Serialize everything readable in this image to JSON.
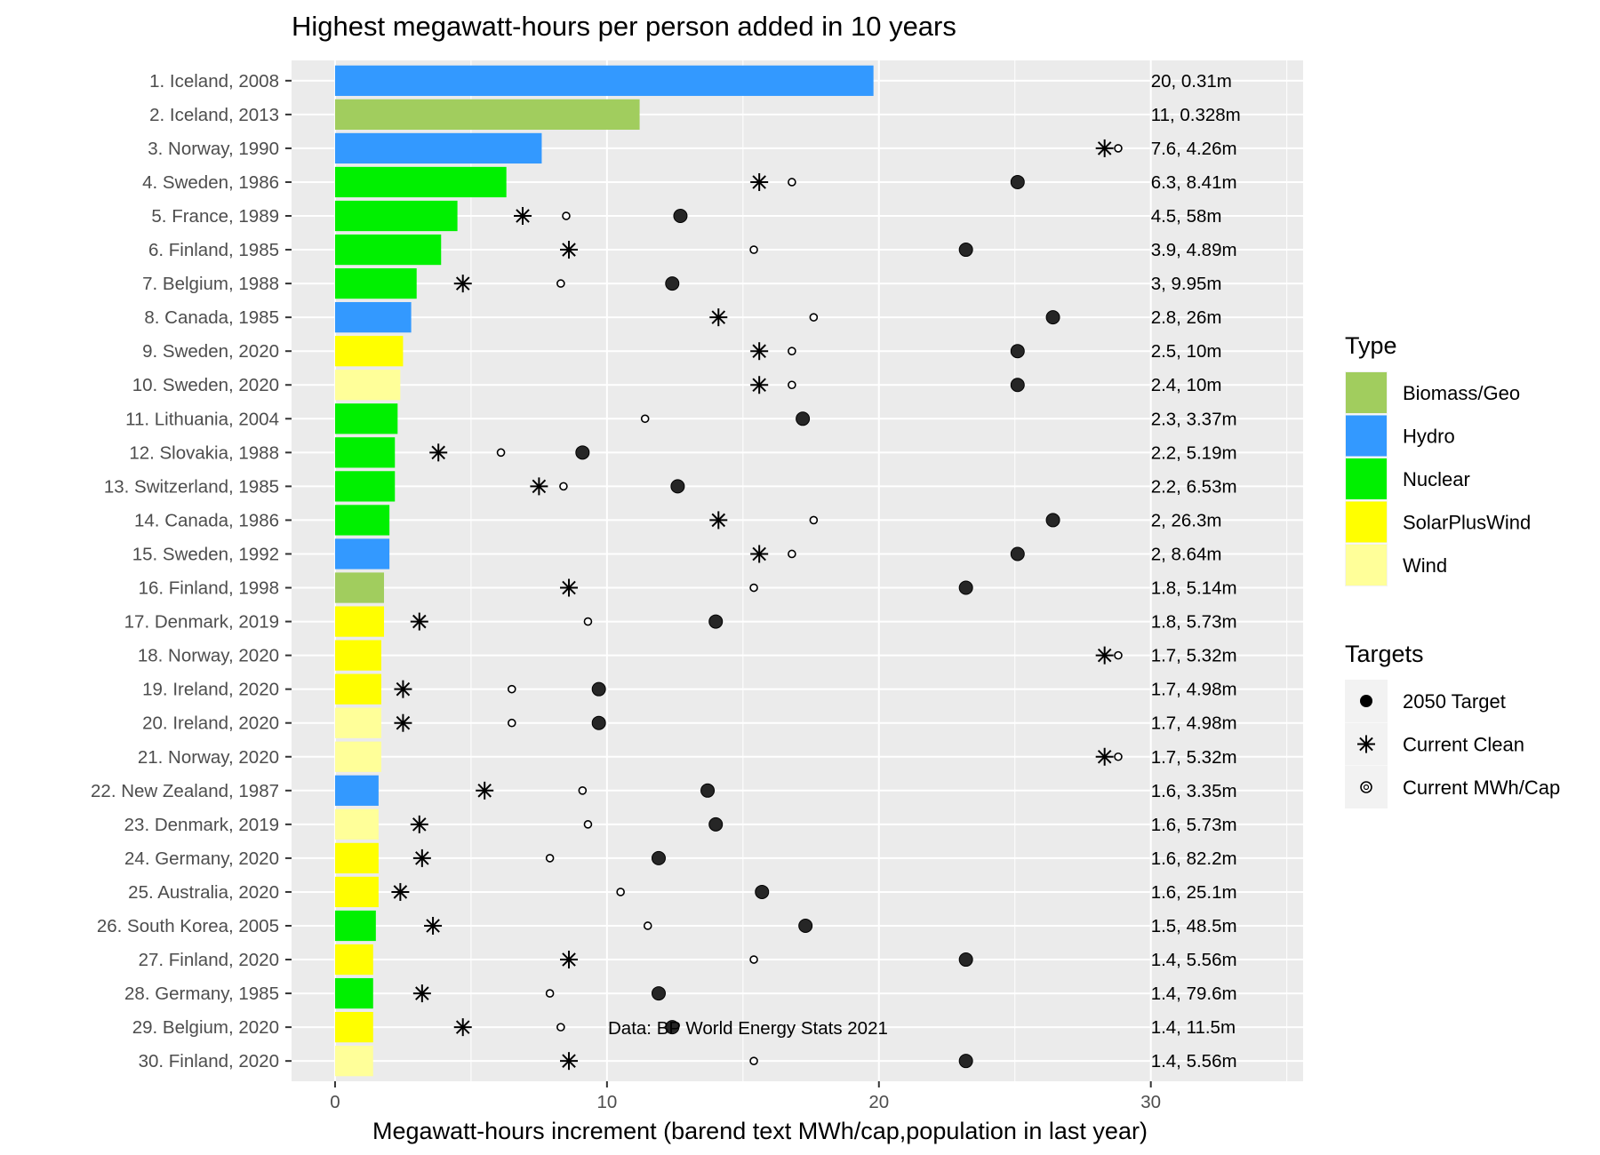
{
  "chart_data": {
    "type": "bar",
    "orientation": "horizontal",
    "title": "Highest megawatt-hours per person added in 10 years",
    "xlabel": "Megawatt-hours increment (barend text MWh/cap,population in last year)",
    "ylabel": "",
    "xlim": [
      -1.6,
      35.6
    ],
    "x_ticks": [
      0,
      10,
      20,
      30
    ],
    "grid": true,
    "legend_placement": "right",
    "caption": "Data: BP World Energy Stats 2021",
    "type_legend": {
      "title": "Type",
      "entries": [
        {
          "name": "Biomass/Geo",
          "color": "#a1cd5e"
        },
        {
          "name": "Hydro",
          "color": "#3399ff"
        },
        {
          "name": "Nuclear",
          "color": "#00f000"
        },
        {
          "name": "SolarPlusWind",
          "color": "#ffff00"
        },
        {
          "name": "Wind",
          "color": "#ffff99"
        }
      ]
    },
    "targets_legend": {
      "title": "Targets",
      "entries": [
        {
          "name": "2050 Target",
          "symbol": "filled-circle"
        },
        {
          "name": "Current Clean",
          "symbol": "asterisk"
        },
        {
          "name": "Current MWh/Cap",
          "symbol": "open-circle"
        }
      ]
    },
    "categories": [
      "1. Iceland, 2008",
      "2. Iceland, 2013",
      "3. Norway, 1990",
      "4. Sweden, 1986",
      "5. France, 1989",
      "6. Finland, 1985",
      "7. Belgium, 1988",
      "8. Canada, 1985",
      "9. Sweden, 2020",
      "10. Sweden, 2020",
      "11. Lithuania, 2004",
      "12. Slovakia, 1988",
      "13. Switzerland, 1985",
      "14. Canada, 1986",
      "15. Sweden, 1992",
      "16. Finland, 1998",
      "17. Denmark, 2019",
      "18. Norway, 2020",
      "19. Ireland, 2020",
      "20. Ireland, 2020",
      "21. Norway, 2020",
      "22. New Zealand, 1987",
      "23. Denmark, 2019",
      "24. Germany, 2020",
      "25. Australia, 2020",
      "26. South Korea, 2005",
      "27. Finland, 2020",
      "28. Germany, 1985",
      "29. Belgium, 2020",
      "30. Finland, 2020"
    ],
    "values": [
      19.8,
      11.2,
      7.6,
      6.3,
      4.5,
      3.9,
      3.0,
      2.8,
      2.5,
      2.4,
      2.3,
      2.2,
      2.2,
      2.0,
      2.0,
      1.8,
      1.8,
      1.7,
      1.7,
      1.7,
      1.7,
      1.6,
      1.6,
      1.6,
      1.6,
      1.5,
      1.4,
      1.4,
      1.4,
      1.4
    ],
    "types": [
      "Hydro",
      "Biomass/Geo",
      "Hydro",
      "Nuclear",
      "Nuclear",
      "Nuclear",
      "Nuclear",
      "Hydro",
      "SolarPlusWind",
      "Wind",
      "Nuclear",
      "Nuclear",
      "Nuclear",
      "Nuclear",
      "Hydro",
      "Biomass/Geo",
      "SolarPlusWind",
      "SolarPlusWind",
      "SolarPlusWind",
      "Wind",
      "Wind",
      "Hydro",
      "Wind",
      "SolarPlusWind",
      "SolarPlusWind",
      "Nuclear",
      "SolarPlusWind",
      "Nuclear",
      "SolarPlusWind",
      "Wind"
    ],
    "bar_labels": [
      "20, 0.31m",
      "11, 0.328m",
      "7.6, 4.26m",
      "6.3, 8.41m",
      "4.5, 58m",
      "3.9, 4.89m",
      "3, 9.95m",
      "2.8, 26m",
      "2.5, 10m",
      "2.4, 10m",
      "2.3, 3.37m",
      "2.2, 5.19m",
      "2.2, 6.53m",
      "2, 26.3m",
      "2, 8.64m",
      "1.8, 5.14m",
      "1.8, 5.73m",
      "1.7, 5.32m",
      "1.7, 4.98m",
      "1.7, 4.98m",
      "1.7, 5.32m",
      "1.6, 3.35m",
      "1.6, 5.73m",
      "1.6, 82.2m",
      "1.6, 25.1m",
      "1.5, 48.5m",
      "1.4, 5.56m",
      "1.4, 79.6m",
      "1.4, 11.5m",
      "1.4, 5.56m"
    ],
    "target_2050": [
      null,
      null,
      null,
      25.1,
      12.7,
      23.2,
      12.4,
      26.4,
      25.1,
      25.1,
      17.2,
      9.1,
      12.6,
      26.4,
      25.1,
      23.2,
      14.0,
      null,
      9.7,
      9.7,
      null,
      13.7,
      14.0,
      11.9,
      15.7,
      17.3,
      23.2,
      11.9,
      12.4,
      23.2
    ],
    "current_clean": [
      null,
      null,
      28.3,
      15.6,
      6.9,
      8.6,
      4.7,
      14.1,
      15.6,
      15.6,
      null,
      3.8,
      7.5,
      14.1,
      15.6,
      8.6,
      3.1,
      28.3,
      2.5,
      2.5,
      28.3,
      5.5,
      3.1,
      3.2,
      2.4,
      3.6,
      8.6,
      3.2,
      4.7,
      8.6
    ],
    "current_mwh_cap": [
      null,
      null,
      28.8,
      16.8,
      8.5,
      15.4,
      8.3,
      17.6,
      16.8,
      16.8,
      11.4,
      6.1,
      8.4,
      17.6,
      16.8,
      15.4,
      9.3,
      28.8,
      6.5,
      6.5,
      28.8,
      9.1,
      9.3,
      7.9,
      10.5,
      11.5,
      15.4,
      7.9,
      8.3,
      15.4
    ]
  }
}
